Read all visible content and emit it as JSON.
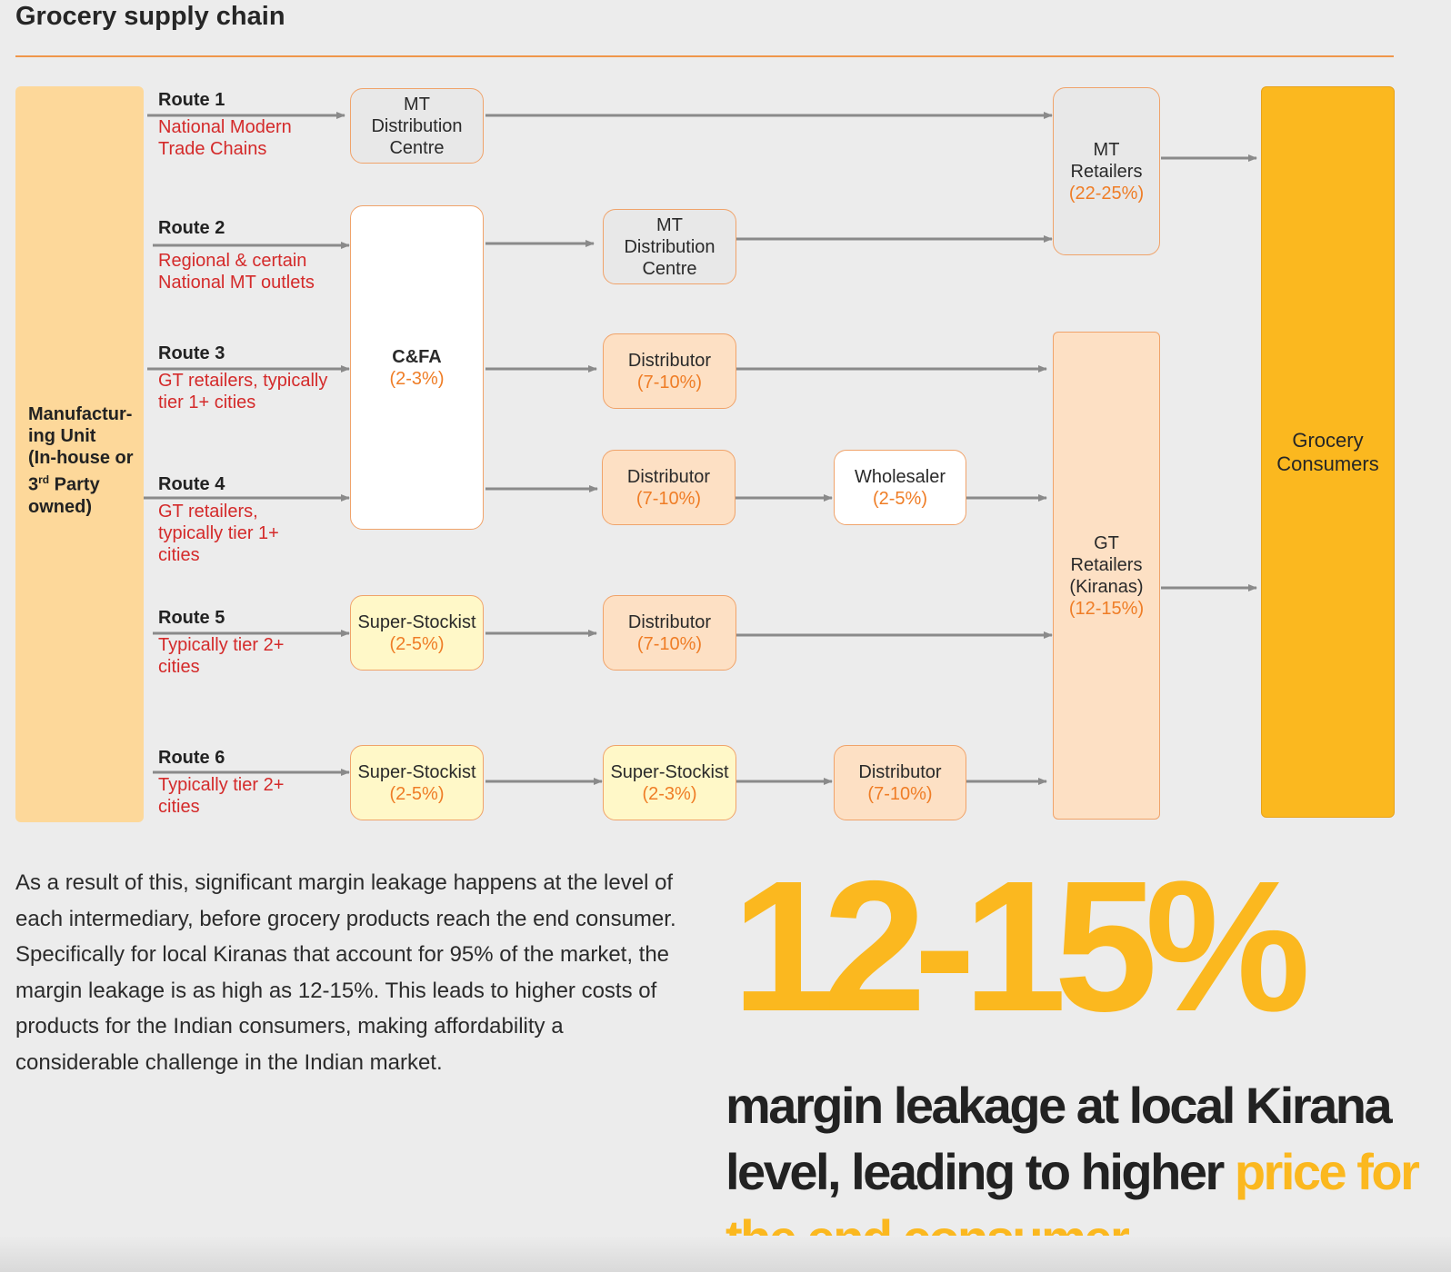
{
  "title": "Grocery supply chain",
  "manufacturing_unit": {
    "line1": "Manufactur-",
    "line2": "ing Unit",
    "line3": "(In-house or",
    "line4_num": "3",
    "line4_sup": "rd",
    "line4_rest": " Party",
    "line5": "owned)"
  },
  "routes": [
    {
      "name": "Route 1",
      "desc1": "National Modern",
      "desc2": "Trade Chains"
    },
    {
      "name": "Route 2",
      "desc1": "Regional & certain",
      "desc2": "National MT outlets"
    },
    {
      "name": "Route 3",
      "desc1": "GT retailers, typically",
      "desc2": "tier 1+ cities"
    },
    {
      "name": "Route 4",
      "desc1": "GT retailers,",
      "desc2": "typically tier 1+",
      "desc3": "cities"
    },
    {
      "name": "Route 5",
      "desc1": "Typically tier 2+",
      "desc2": "cities"
    },
    {
      "name": "Route 6",
      "desc1": "Typically tier 2+",
      "desc2": "cities"
    }
  ],
  "nodes": {
    "mtdc1": {
      "l1": "MT",
      "l2": "Distribution",
      "l3": "Centre"
    },
    "cfa": {
      "label": "C&FA",
      "pct": "(2-3%)"
    },
    "mtdc2": {
      "l1": "MT",
      "l2": "Distribution",
      "l3": "Centre"
    },
    "dist3": {
      "label": "Distributor",
      "pct": "(7-10%)"
    },
    "dist4": {
      "label": "Distributor",
      "pct": "(7-10%)"
    },
    "wholesaler": {
      "label": "Wholesaler",
      "pct": "(2-5%)"
    },
    "ss5": {
      "label": "Super-Stockist",
      "pct": "(2-5%)"
    },
    "dist5": {
      "label": "Distributor",
      "pct": "(7-10%)"
    },
    "ss6a": {
      "label": "Super-Stockist",
      "pct": "(2-5%)"
    },
    "ss6b": {
      "label": "Super-Stockist",
      "pct": "(2-3%)"
    },
    "dist6": {
      "label": "Distributor",
      "pct": "(7-10%)"
    },
    "mt_retailers": {
      "l1": "MT",
      "l2": "Retailers",
      "pct": "(22-25%)"
    },
    "gt_retailers": {
      "l1": "GT",
      "l2": "Retailers",
      "l3": "(Kiranas)",
      "pct": "(12-15%)"
    },
    "consumers": {
      "l1": "Grocery",
      "l2": "Consumers"
    }
  },
  "paragraph": "As a result of this, significant margin leakage happens at the level of each intermediary, before grocery products reach the end consumer. Specifically for local Kiranas that account for 95% of the market, the margin leakage is as high as 12-15%. This leads to higher costs of products for the Indian consumers, making affordability a considerable challenge in the Indian market.",
  "highlight": {
    "big_number": "12-15%",
    "tagline_dark": "margin leakage at local Kirana level, leading to higher ",
    "tagline_accent": "price for the end consumer"
  },
  "colors": {
    "accent_orange": "#ef7d26",
    "route_red": "#d42a2a",
    "consumer_yellow": "#fbb81f",
    "manufacturing_tan": "#fdd89a",
    "arrow_grey": "#8a8a8a"
  }
}
